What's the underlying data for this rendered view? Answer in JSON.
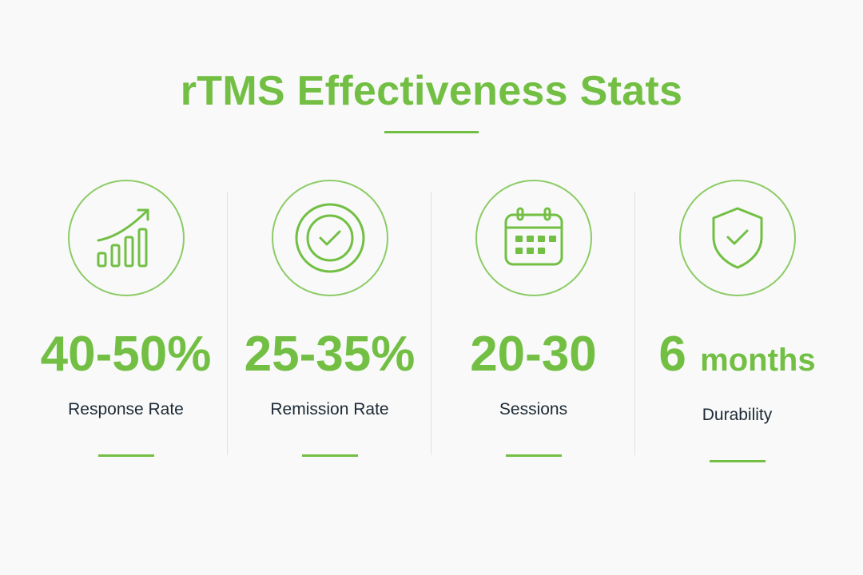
{
  "title": "rTMS Effectiveness Stats",
  "accent_color": "#72bf44",
  "text_color": "#1e2a36",
  "stats": [
    {
      "icon": "growth-chart-icon",
      "value": "40-50%",
      "unit": "",
      "label": "Response Rate"
    },
    {
      "icon": "check-circle-icon",
      "value": "25-35%",
      "unit": "",
      "label": "Remission Rate"
    },
    {
      "icon": "calendar-icon",
      "value": "20-30",
      "unit": "",
      "label": "Sessions"
    },
    {
      "icon": "shield-check-icon",
      "value": "6",
      "unit": "months",
      "label": "Durability"
    }
  ]
}
